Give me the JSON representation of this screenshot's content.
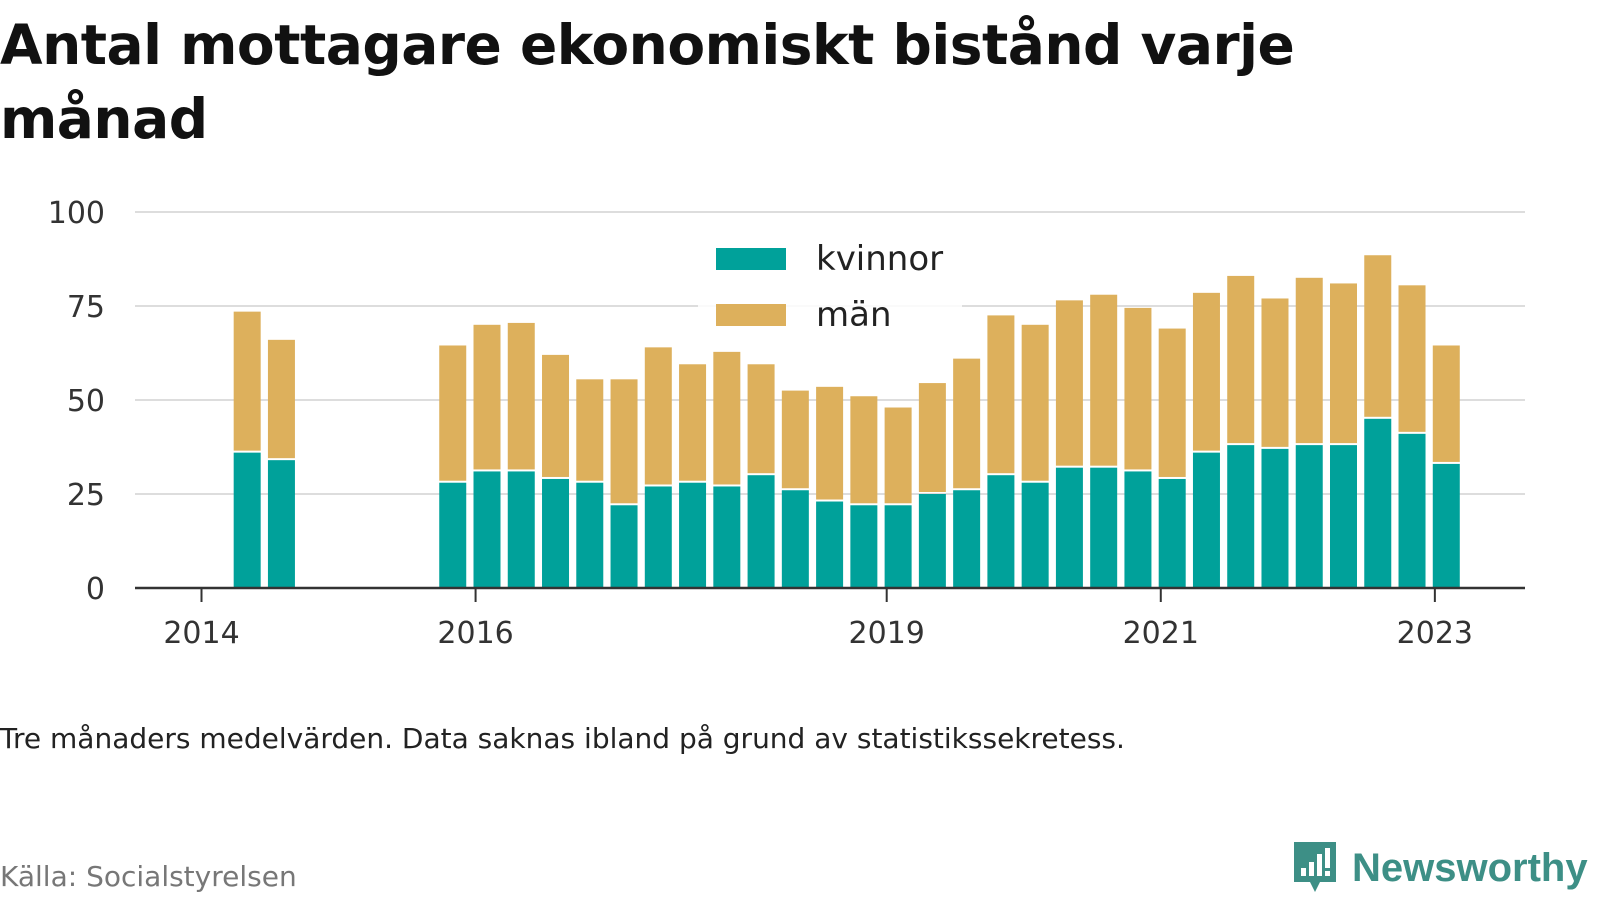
{
  "title": "Antal mottagare ekonomiskt bistånd varje månad",
  "note": "Tre månaders medelvärden. Data saknas ibland på grund av statistikssekretess.",
  "source": "Källa: Socialstyrelsen",
  "brand": {
    "name": "Newsworthy",
    "icon": "newsworthy-logo-icon",
    "color": "#3d8f86"
  },
  "chart_data": {
    "type": "bar",
    "stacked": true,
    "title": "Antal mottagare ekonomiskt bistånd varje månad",
    "xlabel": "",
    "ylabel": "",
    "ylim": [
      0,
      100
    ],
    "yticks": [
      0,
      25,
      50,
      75,
      100
    ],
    "grid": true,
    "legend": "top-center",
    "x_ticks": [
      {
        "label": "2014",
        "at": "2014-01"
      },
      {
        "label": "2016",
        "at": "2016-01"
      },
      {
        "label": "2019",
        "at": "2019-01"
      },
      {
        "label": "2021",
        "at": "2021-01"
      },
      {
        "label": "2023",
        "at": "2023-01"
      }
    ],
    "categories": [
      "2014-05",
      "2014-08",
      "2015-11",
      "2016-02",
      "2016-05",
      "2016-08",
      "2016-11",
      "2017-02",
      "2017-05",
      "2017-08",
      "2017-11",
      "2018-02",
      "2018-05",
      "2018-08",
      "2018-11",
      "2019-02",
      "2019-05",
      "2019-08",
      "2019-11",
      "2020-02",
      "2020-05",
      "2020-08",
      "2020-11",
      "2021-02",
      "2021-05",
      "2021-08",
      "2021-11",
      "2022-02",
      "2022-05",
      "2022-08",
      "2022-11",
      "2023-02"
    ],
    "series": [
      {
        "name": "kvinnor",
        "color": "#00a19a",
        "values": [
          36,
          34,
          28,
          31,
          31,
          29,
          28,
          22,
          27,
          28,
          27,
          30,
          26,
          23,
          22,
          22,
          25,
          26,
          30,
          28,
          32,
          32,
          31,
          29,
          36,
          38,
          37,
          38,
          38,
          45,
          41,
          33
        ]
      },
      {
        "name": "män",
        "color": "#ddb05c",
        "values": [
          37.5,
          32,
          36.5,
          39,
          39.5,
          33,
          27.5,
          33.5,
          37,
          31.5,
          36,
          29.5,
          26.5,
          30.5,
          29,
          26,
          29.5,
          35,
          42.5,
          42,
          44.5,
          46,
          43.5,
          40,
          42.5,
          45,
          40,
          44.5,
          43,
          43.5,
          39.5,
          31.5
        ]
      }
    ]
  }
}
